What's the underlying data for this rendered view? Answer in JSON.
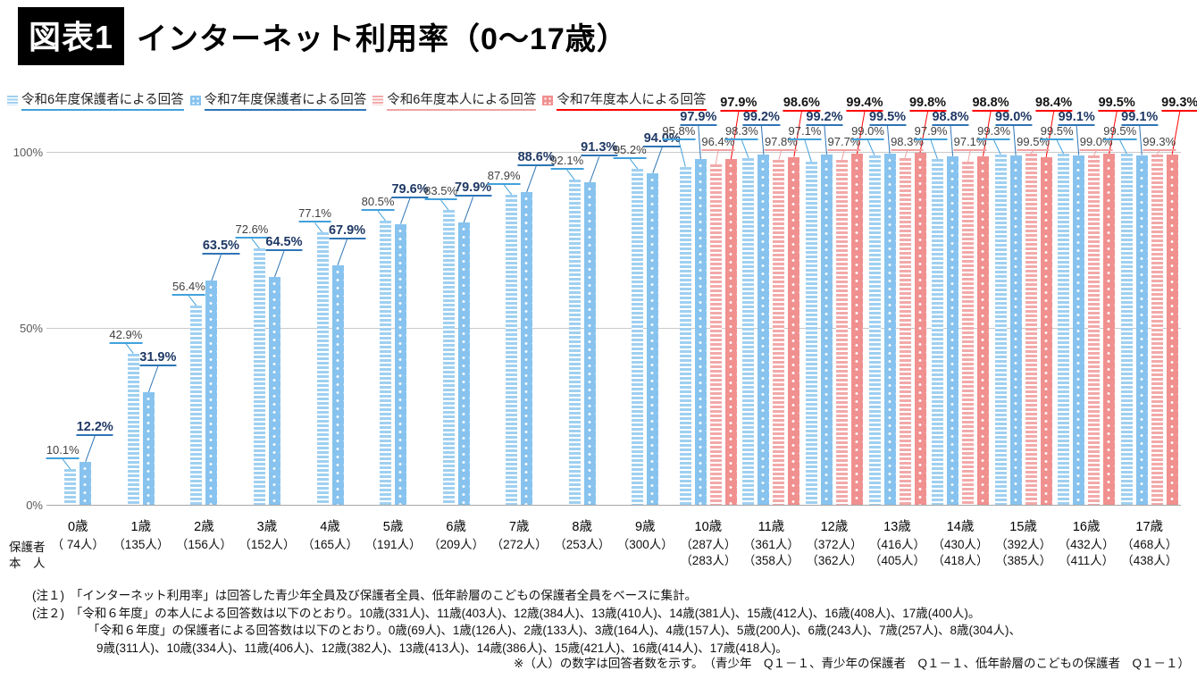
{
  "header": {
    "badge": "図表1",
    "title": "インターネット利用率（0～17歳）"
  },
  "legend": [
    {
      "label": "令和6年度保護者による回答",
      "color": "#9FD0F1",
      "accent": "#41A1DC",
      "text_color": "#3f3f3f",
      "pattern": "stripes",
      "bold_labels": false
    },
    {
      "label": "令和7年度保護者による回答",
      "color": "#87C3EE",
      "accent": "#2E75B6",
      "text_color": "#1F3864",
      "pattern": "dots",
      "bold_labels": true
    },
    {
      "label": "令和6年度本人による回答",
      "color": "#F3A9A9",
      "accent": "#F2A2A2",
      "text_color": "#3f3f3f",
      "pattern": "stripes",
      "bold_labels": false
    },
    {
      "label": "令和7年度本人による回答",
      "color": "#F0908F",
      "accent": "#FF0000",
      "text_color": "#141414",
      "pattern": "dots",
      "bold_labels": true
    }
  ],
  "chart_data": {
    "type": "bar",
    "title": "インターネット利用率（0～17歳）",
    "categories": [
      "0歳",
      "1歳",
      "2歳",
      "3歳",
      "4歳",
      "5歳",
      "6歳",
      "7歳",
      "8歳",
      "9歳",
      "10歳",
      "11歳",
      "12歳",
      "13歳",
      "14歳",
      "15歳",
      "16歳",
      "17歳"
    ],
    "series": [
      {
        "name": "令和6年度保護者による回答",
        "values": [
          10.1,
          42.9,
          56.4,
          72.6,
          77.1,
          80.5,
          83.5,
          87.9,
          92.1,
          95.2,
          95.8,
          98.3,
          97.1,
          99.0,
          97.9,
          99.3,
          99.5,
          99.5
        ]
      },
      {
        "name": "令和7年度保護者による回答",
        "values": [
          12.2,
          31.9,
          63.5,
          64.5,
          67.9,
          79.6,
          79.9,
          88.6,
          91.3,
          94.0,
          97.9,
          99.2,
          99.2,
          99.5,
          98.8,
          99.0,
          99.1,
          99.1
        ]
      },
      {
        "name": "令和6年度本人による回答",
        "values": [
          null,
          null,
          null,
          null,
          null,
          null,
          null,
          null,
          null,
          null,
          96.4,
          97.8,
          97.7,
          98.3,
          97.1,
          99.5,
          99.0,
          99.3
        ]
      },
      {
        "name": "令和7年度本人による回答",
        "values": [
          null,
          null,
          null,
          null,
          null,
          null,
          null,
          null,
          null,
          null,
          97.9,
          98.6,
          99.4,
          99.8,
          98.8,
          98.4,
          99.5,
          99.3
        ]
      }
    ],
    "ylabel": "",
    "xlabel": "",
    "ylim": [
      0,
      100
    ],
    "yticks": [
      "0%",
      "50%",
      "100%"
    ],
    "grid": "horizontal",
    "legend_position": "top-left",
    "value_label_suffix": "%"
  },
  "axis": {
    "row_label_guardian": "保護者",
    "row_label_self": "本　人",
    "counts_guardian": [
      "（ 74人）",
      "（135人）",
      "（156人）",
      "（152人）",
      "（165人）",
      "（191人）",
      "（209人）",
      "（272人）",
      "（253人）",
      "（300人）",
      "（287人）",
      "（361人）",
      "（372人）",
      "（416人）",
      "（430人）",
      "（392人）",
      "（432人）",
      "（468人）"
    ],
    "counts_self": [
      "",
      "",
      "",
      "",
      "",
      "",
      "",
      "",
      "",
      "",
      "（283人）",
      "（358人）",
      "（362人）",
      "（405人）",
      "（418人）",
      "（385人）",
      "（411人）",
      "（438人）"
    ]
  },
  "notes": {
    "line1": "(注１)　「インターネット利用率」は回答した青少年全員及び保護者全員、低年齢層のこどもの保護者全員をベースに集計。",
    "line2": "(注２)　「令和６年度」の本人による回答数は以下のとおり。10歳(331人)、11歳(403人)、12歳(384人)、13歳(410人)、14歳(381人)、15歳(412人)、16歳(408人)、17歳(400人)。",
    "line3": "「令和６年度」の保護者による回答数は以下のとおり。0歳(69人)、1歳(126人)、2歳(133人)、3歳(164人)、4歳(157人)、5歳(200人)、6歳(243人)、7歳(257人)、8歳(304人)、",
    "line4": "9歳(311人)、10歳(334人)、11歳(406人)、12歳(382人)、13歳(413人)、14歳(386人)、15歳(421人)、16歳(414人)、17歳(418人)。"
  },
  "footer_note": "※（人）の数字は回答者数を示す。　（青少年　Q１－１、青少年の保護者　Q１－１、低年齢層のこどもの保護者　Q１－１）"
}
